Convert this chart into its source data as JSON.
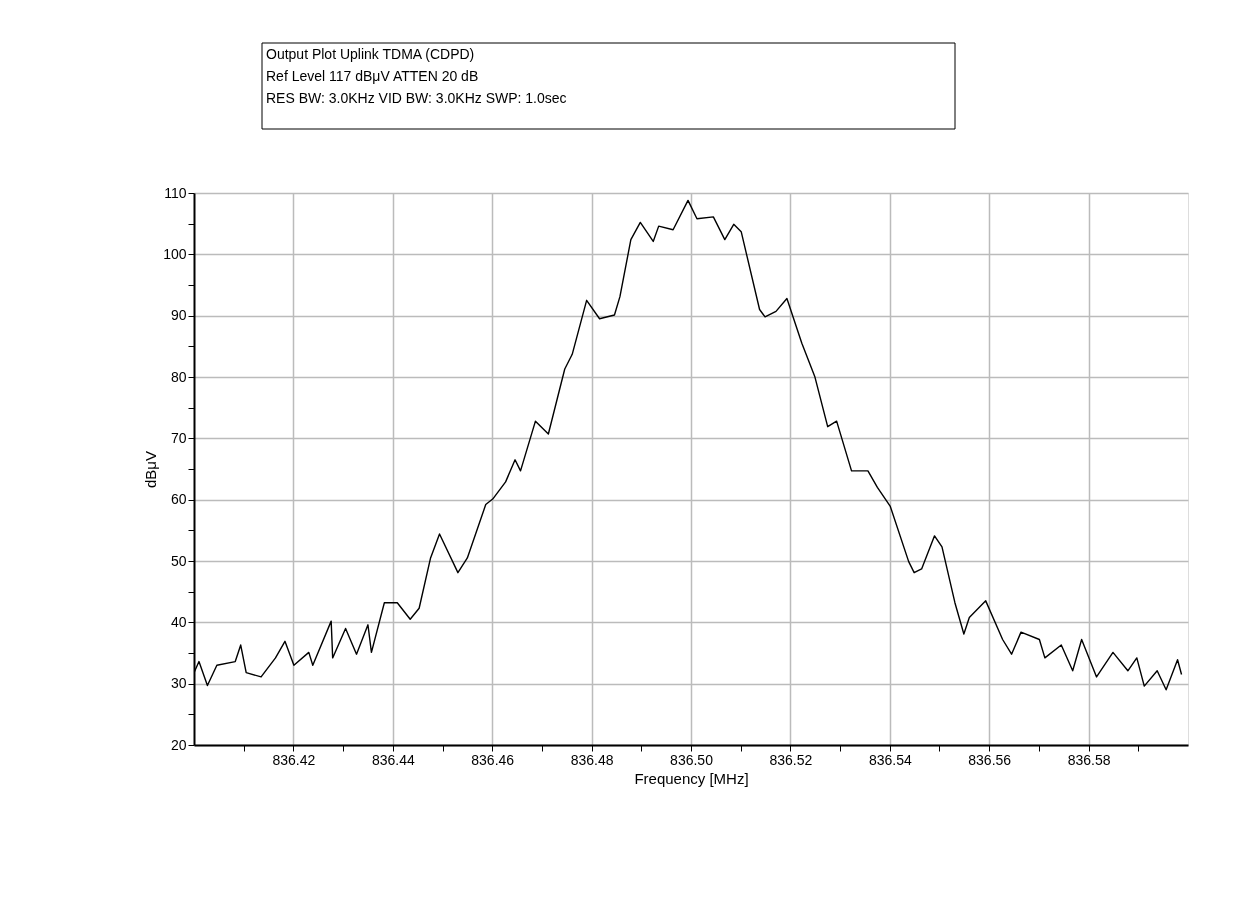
{
  "chart_data": {
    "type": "line",
    "title": "Output Plot Uplink TDMA (CDPD)",
    "subtitle": "Ref Level 117 dBμV    ATTEN 20 dB",
    "annotations": [
      "RES BW: 3.0KHz  VID BW: 3.0KHz  SWP: 1.0sec"
    ],
    "xlabel": "Frequency [MHz]",
    "ylabel": "dBμV",
    "x": [
      836.4,
      836.401,
      836.4027,
      836.4046,
      836.4083,
      836.4094,
      836.4105,
      836.4135,
      836.4164,
      836.4183,
      836.4201,
      836.4231,
      836.4239,
      836.4276,
      836.4279,
      836.4305,
      836.4327,
      836.435,
      836.4357,
      836.4383,
      836.4409,
      836.4435,
      836.4453,
      836.4476,
      836.4494,
      836.4531,
      836.455,
      836.4587,
      836.4601,
      836.4627,
      836.4646,
      836.4657,
      836.4687,
      836.4713,
      836.4731,
      836.4746,
      836.4761,
      836.479,
      836.4816,
      836.4846,
      836.4857,
      836.4879,
      836.4898,
      836.4924,
      836.4935,
      836.4964,
      836.4994,
      836.5012,
      836.5045,
      836.5068,
      836.5086,
      836.5101,
      836.5138,
      836.5149,
      836.5171,
      836.5193,
      836.5223,
      836.5249,
      836.5275,
      836.5293,
      836.5323,
      836.5356,
      836.5375,
      836.5401,
      836.5438,
      836.5449,
      836.5464,
      836.549,
      836.5505,
      836.5531,
      836.5549,
      836.556,
      836.5593,
      836.5627,
      836.5645,
      836.5664,
      836.5701,
      836.5712,
      836.5745,
      836.5768,
      836.5786,
      836.5816,
      836.5849,
      836.5879,
      836.5897,
      836.5912,
      836.5938,
      836.5956,
      836.5979,
      836.5987
    ],
    "series": [
      {
        "color": "#000000",
        "values": [
          31.8,
          33.6,
          29.7,
          33.0,
          33.6,
          36.3,
          31.8,
          31.1,
          34.2,
          36.9,
          33.0,
          35.1,
          33.0,
          40.2,
          34.2,
          39.0,
          34.8,
          39.6,
          35.1,
          43.2,
          43.2,
          40.5,
          42.3,
          50.5,
          54.4,
          48.1,
          50.5,
          59.2,
          60.1,
          62.9,
          66.5,
          64.7,
          72.8,
          70.7,
          76.5,
          81.3,
          83.7,
          92.5,
          89.5,
          90.1,
          93.1,
          102.4,
          105.2,
          102.1,
          104.6,
          104.0,
          108.8,
          105.8,
          106.1,
          102.4,
          104.9,
          103.7,
          91.0,
          89.8,
          90.7,
          92.8,
          85.5,
          80.1,
          71.9,
          72.8,
          64.7,
          64.7,
          62.0,
          58.9,
          49.9,
          48.1,
          48.7,
          54.1,
          52.3,
          43.2,
          38.1,
          40.8,
          43.5,
          37.2,
          34.8,
          38.4,
          37.2,
          34.2,
          36.3,
          32.1,
          37.2,
          31.1,
          35.1,
          32.1,
          34.2,
          29.6,
          32.1,
          29.0,
          33.9,
          31.5
        ]
      }
    ],
    "xlim": [
      836.4,
      836.6
    ],
    "xticks": [
      {
        "value": 836.41,
        "label": null
      },
      836.42,
      {
        "value": 836.43,
        "label": null
      },
      836.44,
      {
        "value": 836.45,
        "label": null
      },
      836.46,
      {
        "value": 836.47,
        "label": null
      },
      836.48,
      {
        "value": 836.49,
        "label": null
      },
      {
        "value": 836.5,
        "label": "836.50"
      },
      {
        "value": 836.51,
        "label": null
      },
      836.52,
      {
        "value": 836.53,
        "label": null
      },
      836.54,
      {
        "value": 836.55,
        "label": null
      },
      836.56,
      {
        "value": 836.57,
        "label": null
      },
      836.58,
      {
        "value": 836.59,
        "label": null
      }
    ],
    "ylim": [
      20,
      110
    ],
    "yticks": [
      20,
      {
        "value": 25,
        "label": null
      },
      30,
      {
        "value": 35,
        "label": null
      },
      40,
      {
        "value": 45,
        "label": null
      },
      50,
      {
        "value": 55,
        "label": null
      },
      60,
      {
        "value": 65,
        "label": null
      },
      70,
      {
        "value": 75,
        "label": null
      },
      80,
      {
        "value": 85,
        "label": null
      },
      90,
      {
        "value": 95,
        "label": null
      },
      100,
      {
        "value": 105,
        "label": null
      },
      110
    ],
    "grid": true,
    "marker": "none",
    "line_style": "solid"
  }
}
